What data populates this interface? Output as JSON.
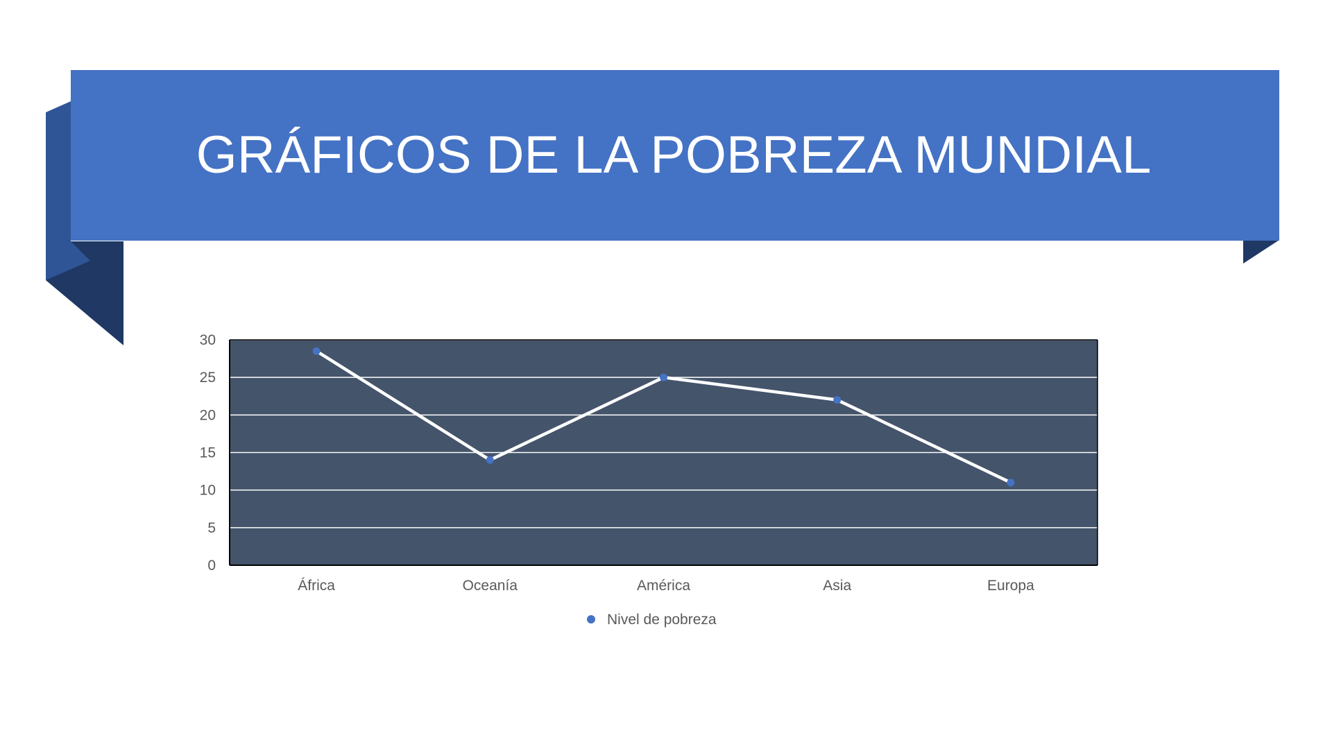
{
  "slide": {
    "title": "GRÁFICOS DE LA POBREZA MUNDIAL"
  },
  "colors": {
    "banner": "#4472C4",
    "banner_fold_dark": "#1F3864",
    "banner_fold_mid": "#2F5597",
    "plot_background": "#44546A",
    "line": "#FFFFFF",
    "marker": "#4472C4",
    "gridline": "#FFFFFF",
    "text": "#595959"
  },
  "chart_data": {
    "type": "line",
    "categories": [
      "África",
      "Oceanía",
      "América",
      "Asia",
      "Europa"
    ],
    "series": [
      {
        "name": "Nivel de pobreza",
        "values": [
          28.5,
          14,
          25,
          22,
          11
        ]
      }
    ],
    "ylim": [
      0,
      30
    ],
    "yticks": [
      "0",
      "5",
      "10",
      "15",
      "20",
      "25",
      "30"
    ],
    "grid": true,
    "legend": "bottom"
  }
}
